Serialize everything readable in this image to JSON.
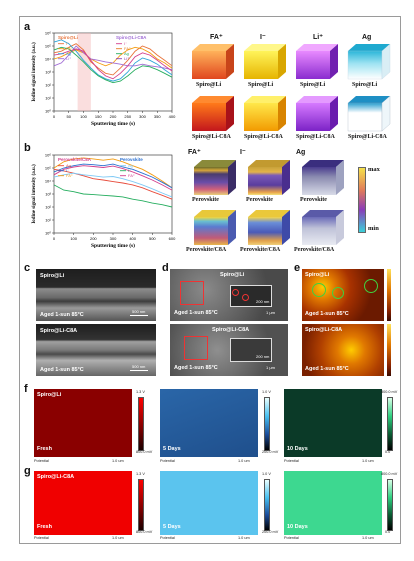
{
  "colors": {
    "fa": "#e8743b",
    "iodide": "#a06cd5",
    "li": "#ff6bb0",
    "ag": "#2ea5d8",
    "blue": "#2a6fd1",
    "green": "#6aa84f",
    "orange": "#f39c12",
    "purple": "#7a3cc4"
  },
  "panel_labels": {
    "a": "a",
    "b": "b",
    "c": "c",
    "d": "d",
    "e": "e",
    "f": "f",
    "g": "g"
  },
  "panel_a": {
    "chart_data": {
      "type": "line",
      "xlabel": "Sputtering time (s)",
      "ylabel": "Iodine signal intensity (a.u.)",
      "xlim": [
        0,
        400
      ],
      "ylim_log": [
        1,
        1000000
      ],
      "x_ticks": [
        "0",
        "50",
        "100",
        "150",
        "200",
        "250",
        "300",
        "350",
        "400"
      ],
      "y_ticks": [
        "10⁰",
        "10¹",
        "10²",
        "10³",
        "10⁴",
        "10⁵",
        "10⁶"
      ],
      "legend_groups": [
        "Spiro@Li",
        "Spiro@Li-C8A"
      ],
      "legend_left": [
        "I⁻",
        "FA⁺",
        "Ag",
        "Li⁺"
      ],
      "legend_right": [
        "I⁻",
        "FA⁺",
        "Ag",
        "Li⁺"
      ],
      "series": [
        {
          "name": "I⁻",
          "color": "#e8743b",
          "x": [
            0,
            25,
            50,
            75,
            100,
            125,
            150,
            175,
            200,
            225,
            250,
            275,
            300,
            325,
            350,
            375,
            400
          ],
          "y": [
            30000,
            40000,
            80000,
            150000,
            50000,
            6000,
            2000,
            800,
            600,
            2000,
            8000,
            40000,
            100000,
            60000,
            20000,
            8000,
            3000
          ]
        },
        {
          "name": "FA⁺",
          "color": "#f39c12",
          "x": [
            0,
            25,
            50,
            75,
            100,
            125,
            150,
            175,
            200,
            225,
            250,
            275,
            300,
            325,
            350,
            375,
            400
          ],
          "y": [
            10000,
            15000,
            30000,
            50000,
            30000,
            10000,
            5000,
            3000,
            5000,
            20000,
            50000,
            80000,
            60000,
            30000,
            10000,
            5000,
            2000
          ]
        },
        {
          "name": "Ag",
          "color": "#2ea5d8",
          "x": [
            0,
            25,
            50,
            75,
            100,
            125,
            150,
            175,
            200,
            225,
            250,
            275,
            300,
            325,
            350,
            375,
            400
          ],
          "y": [
            200000,
            300000,
            150000,
            40000,
            8000,
            2000,
            600,
            300,
            200,
            300,
            1000,
            5000,
            12000,
            8000,
            4000,
            1500,
            600
          ]
        },
        {
          "name": "Li⁺",
          "color": "#a06cd5",
          "x": [
            0,
            25,
            50,
            75,
            100,
            125,
            150,
            175,
            200,
            225,
            250,
            275,
            300,
            325,
            350,
            375,
            400
          ],
          "y": [
            3000,
            5000,
            20000,
            100000,
            30000,
            10000,
            8000,
            6000,
            5000,
            4000,
            3000,
            3000,
            4000,
            3000,
            2500,
            2000,
            1500
          ]
        },
        {
          "name": "I⁻",
          "color": "#d33f8c",
          "x": [
            0,
            25,
            50,
            75,
            100,
            125,
            150,
            175,
            200,
            225,
            250,
            275,
            300,
            325,
            350,
            375,
            400
          ],
          "y": [
            20000,
            25000,
            40000,
            60000,
            40000,
            8000,
            1500,
            500,
            300,
            800,
            3000,
            15000,
            30000,
            20000,
            8000,
            3000,
            1200
          ]
        },
        {
          "name": "Ag",
          "color": "#27ae60",
          "x": [
            0,
            25,
            50,
            75,
            100,
            125,
            150,
            175,
            200,
            225,
            250,
            275,
            300,
            325,
            350,
            375,
            400
          ],
          "y": [
            50000,
            80000,
            60000,
            20000,
            6000,
            1500,
            500,
            250,
            150,
            200,
            500,
            1500,
            3000,
            2500,
            1500,
            800,
            400
          ]
        }
      ]
    },
    "cube_titles": [
      "FA⁺",
      "I⁻",
      "Li⁺",
      "Ag"
    ],
    "cube_caps_top": [
      "Spiro@Li",
      "Spiro@Li",
      "Spiro@Li",
      "Spiro@Li"
    ],
    "cube_caps_bottom": [
      "Spiro@Li-C8A",
      "Spiro@Li-C8A",
      "Spiro@Li-C8A",
      "Spiro@Li-C8A"
    ]
  },
  "panel_b": {
    "chart_data": {
      "type": "line",
      "xlabel": "Sputtering time (s)",
      "ylabel": "Iodine signal intensity (a.u.)",
      "xlim": [
        0,
        600
      ],
      "ylim_log": [
        1,
        1000000
      ],
      "x_ticks": [
        "0",
        "100",
        "200",
        "300",
        "400",
        "500",
        "600"
      ],
      "y_ticks": [
        "10⁰",
        "10¹",
        "10²",
        "10³",
        "10⁴",
        "10⁵",
        "10⁶"
      ],
      "legend_groups": [
        "Perovskite/C8A",
        "Perovskite"
      ],
      "legend_items": [
        "Ag",
        "I⁻",
        "FA⁺"
      ],
      "series": [
        {
          "name": "FA⁺",
          "color": "#f39c12",
          "x": [
            0,
            50,
            100,
            150,
            200,
            250,
            300,
            350,
            400,
            450,
            500,
            550,
            600
          ],
          "y": [
            100000,
            300000,
            500000,
            600000,
            500000,
            400000,
            500000,
            300000,
            150000,
            80000,
            30000,
            10000,
            3000
          ]
        },
        {
          "name": "I⁻",
          "color": "#2a6fd1",
          "x": [
            0,
            50,
            100,
            150,
            200,
            250,
            300,
            350,
            400,
            450,
            500,
            550,
            600
          ],
          "y": [
            50000,
            100000,
            150000,
            200000,
            180000,
            150000,
            200000,
            120000,
            80000,
            40000,
            20000,
            8000,
            3000
          ]
        },
        {
          "name": "Ag",
          "color": "#e74c3c",
          "x": [
            0,
            50,
            100,
            150,
            200,
            250,
            300,
            350,
            400,
            450,
            500,
            550,
            600
          ],
          "y": [
            80000,
            60000,
            40000,
            25000,
            15000,
            12000,
            9000,
            7000,
            5000,
            3000,
            1500,
            800,
            400
          ]
        },
        {
          "name": "FA⁺",
          "color": "#d33f8c",
          "x": [
            0,
            50,
            100,
            150,
            200,
            250,
            300,
            350,
            400,
            450,
            500,
            550,
            600
          ],
          "y": [
            30000,
            80000,
            120000,
            150000,
            130000,
            110000,
            140000,
            90000,
            50000,
            25000,
            12000,
            5000,
            2000
          ]
        },
        {
          "name": "I⁻",
          "color": "#27ae60",
          "x": [
            0,
            50,
            100,
            150,
            200,
            250,
            300,
            350,
            400,
            450,
            500,
            550,
            600
          ],
          "y": [
            5000,
            2000,
            1500,
            1000,
            900,
            800,
            700,
            600,
            400,
            300,
            200,
            150,
            100
          ]
        },
        {
          "name": "Ag",
          "color": "#7ec9f5",
          "x": [
            0,
            50,
            100,
            150,
            200,
            250,
            300,
            350,
            400,
            450,
            500,
            550,
            600
          ],
          "y": [
            20000,
            30000,
            40000,
            30000,
            25000,
            20000,
            22000,
            15000,
            9000,
            5000,
            2500,
            1200,
            600
          ]
        }
      ]
    },
    "cube_titles": [
      "FA⁺",
      "I⁻",
      "Ag"
    ],
    "cube_caps_top": [
      "Perovskite",
      "Perovskite",
      "Perovskite"
    ],
    "cube_caps_bottom": [
      "Perovskite/C8A",
      "Perovskite/C8A",
      "Perovskite/C8A"
    ],
    "scale_max": "max",
    "scale_min": "min"
  },
  "panel_c": {
    "top_sample": "Spiro@Li",
    "top_cond": "Aged 1-sun 85°C",
    "top_scale": "500 nm",
    "bottom_sample": "Spiro@Li-C8A",
    "bottom_cond": "Aged 1-sun 85°C",
    "bottom_scale": "500 nm"
  },
  "panel_d": {
    "top_sample": "Spiro@Li",
    "top_cond": "Aged 1-sun 85°C",
    "top_scale": "1 μm",
    "top_inset_scale": "200 nm",
    "bottom_sample": "Spiro@Li-C8A",
    "bottom_cond": "Aged 1-sun 85°C",
    "bottom_scale": "1 μm",
    "bottom_inset_scale": "200 nm"
  },
  "panel_e": {
    "top_sample": "Spiro@Li",
    "top_cond": "Aged 1-sun 85°C",
    "bottom_sample": "Spiro@Li-C8A",
    "bottom_cond": "Aged 1-sun 85°C"
  },
  "panel_f": {
    "sample": "Spiro@Li",
    "maps": [
      {
        "state": "Fresh",
        "foot_left": "Potential",
        "foot_right": "1.0 um",
        "cbar_max": "1.3 V",
        "cbar_min": "800.0 mV"
      },
      {
        "state": "5 Days",
        "foot_left": "Potential",
        "foot_right": "1.0 um",
        "cbar_max": "1.0 V",
        "cbar_min": "200.0 mV"
      },
      {
        "state": "10 Days",
        "foot_left": "Potential",
        "foot_right": "1.0 um",
        "cbar_max": "800.0 mV",
        "cbar_min": "0.0"
      }
    ]
  },
  "panel_g": {
    "sample": "Spiro@Li-C8A",
    "maps": [
      {
        "state": "Fresh",
        "foot_left": "Potential",
        "foot_right": "1.0 um",
        "cbar_max": "1.3 V",
        "cbar_min": "800.0 mV"
      },
      {
        "state": "5 Days",
        "foot_left": "Potential",
        "foot_right": "1.0 um",
        "cbar_max": "1.0 V",
        "cbar_min": "200.0 mV"
      },
      {
        "state": "10 Days",
        "foot_left": "Potential",
        "foot_right": "1.0 um",
        "cbar_max": "800.0 mV",
        "cbar_min": "0.0"
      }
    ]
  }
}
